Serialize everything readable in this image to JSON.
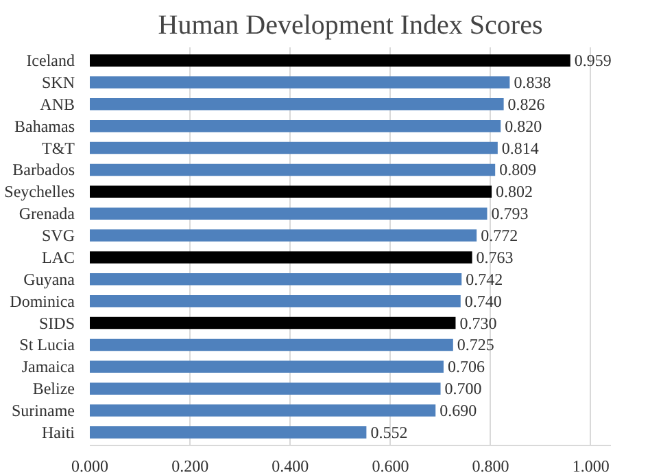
{
  "chart_data": {
    "type": "bar",
    "orientation": "horizontal",
    "title": "Human Development Index Scores",
    "categories": [
      "Iceland",
      "SKN",
      "ANB",
      "Bahamas",
      "T&T",
      "Barbados",
      "Seychelles",
      "Grenada",
      "SVG",
      "LAC",
      "Guyana",
      "Dominica",
      "SIDS",
      "St Lucia",
      "Jamaica",
      "Belize",
      "Suriname",
      "Haiti"
    ],
    "values": [
      0.959,
      0.838,
      0.826,
      0.82,
      0.814,
      0.809,
      0.802,
      0.793,
      0.772,
      0.763,
      0.742,
      0.74,
      0.73,
      0.725,
      0.706,
      0.7,
      0.69,
      0.552
    ],
    "value_labels": [
      "0.959",
      "0.838",
      "0.826",
      "0.820",
      "0.814",
      "0.809",
      "0.802",
      "0.793",
      "0.772",
      "0.763",
      "0.742",
      "0.740",
      "0.730",
      "0.725",
      "0.706",
      "0.700",
      "0.690",
      "0.552"
    ],
    "colors": [
      "#000000",
      "#4f81bd",
      "#4f81bd",
      "#4f81bd",
      "#4f81bd",
      "#4f81bd",
      "#000000",
      "#4f81bd",
      "#4f81bd",
      "#000000",
      "#4f81bd",
      "#4f81bd",
      "#000000",
      "#4f81bd",
      "#4f81bd",
      "#4f81bd",
      "#4f81bd",
      "#4f81bd"
    ],
    "xlim": [
      0,
      1.04
    ],
    "xticks": [
      {
        "value": 0,
        "label": "0.000"
      },
      {
        "value": 0.2,
        "label": "0.200"
      },
      {
        "value": 0.4,
        "label": "0.400"
      },
      {
        "value": 0.6,
        "label": "0.600"
      },
      {
        "value": 0.8,
        "label": "0.800"
      },
      {
        "value": 1,
        "label": "1.000"
      }
    ],
    "grid": "x"
  }
}
